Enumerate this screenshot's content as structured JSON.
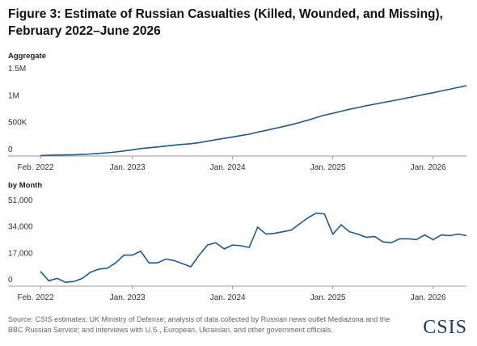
{
  "title": [
    "Figure 3: Estimate of Russian Casualties (Killed, Wounded, and Missing),",
    "February 2022–June 2026"
  ],
  "source": [
    "Source: CSIS estimates; UK Ministry of Defense; analysis of data collected by Russian news outlet Mediazona and the",
    "BBC Russian Service; and interviews with U.S., European, Ukrainian, and other government officials."
  ],
  "logo": "CSIS",
  "chart_data": [
    {
      "type": "line",
      "subtitle": "Aggregate",
      "color": "#1f5a8a",
      "x": [
        "2022-02",
        "2022-03",
        "2022-04",
        "2022-05",
        "2022-06",
        "2022-07",
        "2022-08",
        "2022-09",
        "2022-10",
        "2022-11",
        "2022-12",
        "2023-01",
        "2023-02",
        "2023-03",
        "2023-04",
        "2023-05",
        "2023-06",
        "2023-07",
        "2023-08",
        "2023-09",
        "2023-10",
        "2023-11",
        "2023-12",
        "2024-01",
        "2024-02",
        "2024-03",
        "2024-04",
        "2024-05",
        "2024-06",
        "2024-07",
        "2024-08",
        "2024-09",
        "2024-10",
        "2024-11",
        "2024-12",
        "2025-01",
        "2025-02",
        "2025-03",
        "2025-04",
        "2025-05",
        "2025-06",
        "2025-07",
        "2025-08",
        "2025-09",
        "2025-10",
        "2025-11",
        "2025-12",
        "2026-01",
        "2026-02",
        "2026-03",
        "2026-04",
        "2026-05"
      ],
      "values": [
        9500,
        13000,
        18000,
        20500,
        23500,
        28500,
        37500,
        48500,
        60000,
        75000,
        95000,
        115000,
        137500,
        152500,
        167500,
        185000,
        201500,
        216000,
        228500,
        248500,
        275000,
        303000,
        327000,
        353500,
        379500,
        404500,
        442500,
        476000,
        510000,
        545000,
        581000,
        621000,
        665000,
        712000,
        758500,
        792000,
        831500,
        866500,
        900000,
        931500,
        963500,
        992000,
        1020000,
        1050500,
        1081000,
        1111000,
        1144000,
        1174000,
        1207000,
        1239500,
        1273000,
        1305500
      ],
      "ylim": [
        0,
        1500000
      ],
      "yticks": [
        0,
        {
          "value": 500000,
          "label": "500K"
        },
        {
          "value": 1000000,
          "label": "1M"
        },
        {
          "value": 1500000,
          "label": "1.5M"
        }
      ],
      "xlim": [
        "2022-02",
        "2026-05"
      ],
      "xticks": [
        {
          "value": "2022-02",
          "label": "Feb. 2022"
        },
        {
          "value": "2023-01",
          "label": "Jan. 2023"
        },
        {
          "value": "2024-01",
          "label": "Jan. 2024"
        },
        {
          "value": "2025-01",
          "label": "Jan. 2025"
        },
        {
          "value": "2026-01",
          "label": "Jan. 2026"
        }
      ]
    },
    {
      "type": "line",
      "subtitle": "by Month",
      "color": "#1f5a8a",
      "x": [
        "2022-02",
        "2022-03",
        "2022-04",
        "2022-05",
        "2022-06",
        "2022-07",
        "2022-08",
        "2022-09",
        "2022-10",
        "2022-11",
        "2022-12",
        "2023-01",
        "2023-02",
        "2023-03",
        "2023-04",
        "2023-05",
        "2023-06",
        "2023-07",
        "2023-08",
        "2023-09",
        "2023-10",
        "2023-11",
        "2023-12",
        "2024-01",
        "2024-02",
        "2024-03",
        "2024-04",
        "2024-05",
        "2024-06",
        "2024-07",
        "2024-08",
        "2024-09",
        "2024-10",
        "2024-11",
        "2024-12",
        "2025-01",
        "2025-02",
        "2025-03",
        "2025-04",
        "2025-05",
        "2025-06",
        "2025-07",
        "2025-08",
        "2025-09",
        "2025-10",
        "2025-11",
        "2025-12",
        "2026-01",
        "2026-02",
        "2026-03",
        "2026-04",
        "2026-05"
      ],
      "values": [
        9500,
        3500,
        5000,
        2500,
        3000,
        5000,
        9000,
        11000,
        11500,
        15000,
        20000,
        20000,
        22500,
        15000,
        15000,
        17500,
        16500,
        14500,
        12500,
        20000,
        26500,
        28000,
        24000,
        26500,
        26000,
        25000,
        38000,
        33500,
        34000,
        35000,
        36000,
        40000,
        44000,
        47000,
        46500,
        33500,
        39500,
        35000,
        33500,
        31500,
        32000,
        28500,
        28000,
        30500,
        30500,
        30000,
        33000,
        30000,
        33000,
        32500,
        33500,
        32500
      ],
      "ylim": [
        0,
        51000
      ],
      "yticks": [
        0,
        {
          "value": 17000,
          "label": "17,000"
        },
        {
          "value": 34000,
          "label": "34,000"
        },
        {
          "value": 51000,
          "label": "51,000"
        }
      ],
      "xlim": [
        "2022-02",
        "2026-05"
      ],
      "xticks": [
        {
          "value": "2022-02",
          "label": "Feb. 2022"
        },
        {
          "value": "2023-01",
          "label": "Jan. 2023"
        },
        {
          "value": "2024-01",
          "label": "Jan. 2024"
        },
        {
          "value": "2025-01",
          "label": "Jan. 2025"
        },
        {
          "value": "2026-01",
          "label": "Jan. 2026"
        }
      ]
    }
  ]
}
